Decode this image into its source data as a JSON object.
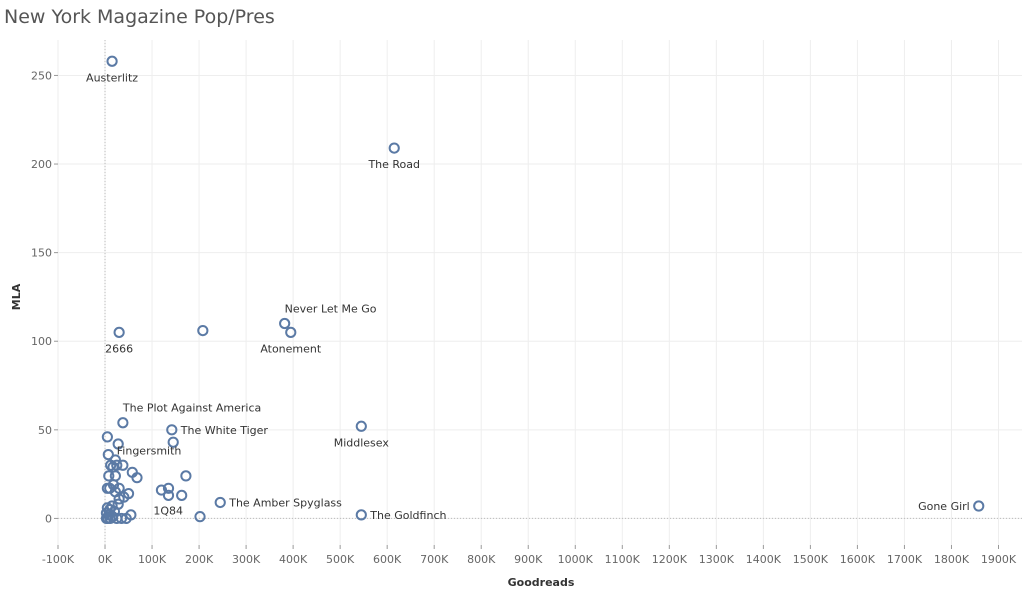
{
  "chart_data": {
    "type": "scatter",
    "title": "New York Magazine Pop/Pres",
    "xlabel": "Goodreads",
    "ylabel": "MLA",
    "xlim": [
      -100000,
      1950000
    ],
    "ylim": [
      -15,
      270
    ],
    "x_ticks": [
      -100000,
      0,
      100000,
      200000,
      300000,
      400000,
      500000,
      600000,
      700000,
      800000,
      900000,
      1000000,
      1100000,
      1200000,
      1300000,
      1400000,
      1500000,
      1600000,
      1700000,
      1800000,
      1900000
    ],
    "x_tick_labels": [
      "-100K",
      "0K",
      "100K",
      "200K",
      "300K",
      "400K",
      "500K",
      "600K",
      "700K",
      "800K",
      "900K",
      "1000K",
      "1100K",
      "1200K",
      "1300K",
      "1400K",
      "1500K",
      "1600K",
      "1700K",
      "1800K",
      "1900K"
    ],
    "y_ticks": [
      0,
      50,
      100,
      150,
      200,
      250
    ],
    "y_tick_labels": [
      "0",
      "50",
      "100",
      "150",
      "200",
      "250"
    ],
    "grid": true,
    "marker_color": "#5b7aa5",
    "points": [
      {
        "x": 15000,
        "y": 258,
        "label": "Austerlitz",
        "label_pos": "below"
      },
      {
        "x": 615000,
        "y": 209,
        "label": "The Road",
        "label_pos": "below"
      },
      {
        "x": 382000,
        "y": 110,
        "label": "Never Let Me Go",
        "label_pos": "above-right"
      },
      {
        "x": 395000,
        "y": 105,
        "label": "Atonement",
        "label_pos": "below"
      },
      {
        "x": 30000,
        "y": 105,
        "label": "2666",
        "label_pos": "below"
      },
      {
        "x": 208000,
        "y": 106,
        "label": "",
        "label_pos": ""
      },
      {
        "x": 38000,
        "y": 54,
        "label": "The Plot Against America",
        "label_pos": "above-right"
      },
      {
        "x": 142000,
        "y": 50,
        "label": "The White Tiger",
        "label_pos": "right"
      },
      {
        "x": 545000,
        "y": 52,
        "label": "Middlesex",
        "label_pos": "below"
      },
      {
        "x": 145000,
        "y": 43,
        "label": "",
        "label_pos": ""
      },
      {
        "x": 5000,
        "y": 46,
        "label": "",
        "label_pos": ""
      },
      {
        "x": 28000,
        "y": 42,
        "label": "",
        "label_pos": ""
      },
      {
        "x": 7000,
        "y": 36,
        "label": "",
        "label_pos": ""
      },
      {
        "x": 22000,
        "y": 33,
        "label": "",
        "label_pos": ""
      },
      {
        "x": 25000,
        "y": 30,
        "label": "Fingersmith",
        "label_pos": "above-right"
      },
      {
        "x": 12000,
        "y": 30,
        "label": "",
        "label_pos": ""
      },
      {
        "x": 38000,
        "y": 30,
        "label": "",
        "label_pos": ""
      },
      {
        "x": 17000,
        "y": 29,
        "label": "",
        "label_pos": ""
      },
      {
        "x": 58000,
        "y": 26,
        "label": "",
        "label_pos": ""
      },
      {
        "x": 172000,
        "y": 24,
        "label": "",
        "label_pos": ""
      },
      {
        "x": 8000,
        "y": 24,
        "label": "",
        "label_pos": ""
      },
      {
        "x": 22000,
        "y": 24,
        "label": "",
        "label_pos": ""
      },
      {
        "x": 68000,
        "y": 23,
        "label": "",
        "label_pos": ""
      },
      {
        "x": 18000,
        "y": 19,
        "label": "",
        "label_pos": ""
      },
      {
        "x": 5000,
        "y": 17,
        "label": "",
        "label_pos": ""
      },
      {
        "x": 10000,
        "y": 17,
        "label": "",
        "label_pos": ""
      },
      {
        "x": 30000,
        "y": 17,
        "label": "",
        "label_pos": ""
      },
      {
        "x": 120000,
        "y": 16,
        "label": "",
        "label_pos": ""
      },
      {
        "x": 135000,
        "y": 17,
        "label": "",
        "label_pos": ""
      },
      {
        "x": 22000,
        "y": 15,
        "label": "",
        "label_pos": ""
      },
      {
        "x": 50000,
        "y": 14,
        "label": "",
        "label_pos": ""
      },
      {
        "x": 135000,
        "y": 13,
        "label": "",
        "label_pos": ""
      },
      {
        "x": 163000,
        "y": 13,
        "label": "",
        "label_pos": ""
      },
      {
        "x": 40000,
        "y": 12,
        "label": "",
        "label_pos": ""
      },
      {
        "x": 30000,
        "y": 11,
        "label": "",
        "label_pos": ""
      },
      {
        "x": 245000,
        "y": 9,
        "label": "The Amber Spyglass",
        "label_pos": "right"
      },
      {
        "x": 1858000,
        "y": 7,
        "label": "Gone Girl",
        "label_pos": "left"
      },
      {
        "x": 28000,
        "y": 8,
        "label": "",
        "label_pos": ""
      },
      {
        "x": 15000,
        "y": 7,
        "label": "",
        "label_pos": ""
      },
      {
        "x": 5000,
        "y": 6,
        "label": "",
        "label_pos": ""
      },
      {
        "x": 10000,
        "y": 5,
        "label": "",
        "label_pos": ""
      },
      {
        "x": 20000,
        "y": 4,
        "label": "",
        "label_pos": ""
      },
      {
        "x": 3000,
        "y": 3,
        "label": "",
        "label_pos": ""
      },
      {
        "x": 8000,
        "y": 2,
        "label": "",
        "label_pos": ""
      },
      {
        "x": 55000,
        "y": 2,
        "label": "",
        "label_pos": ""
      },
      {
        "x": 545000,
        "y": 2,
        "label": "The Goldfinch",
        "label_pos": "right"
      },
      {
        "x": 16000,
        "y": 1,
        "label": "",
        "label_pos": ""
      },
      {
        "x": 202000,
        "y": 1,
        "label": "1Q84",
        "label_pos": "left-up"
      },
      {
        "x": 3000,
        "y": 0,
        "label": "",
        "label_pos": ""
      },
      {
        "x": 6000,
        "y": 0,
        "label": "",
        "label_pos": ""
      },
      {
        "x": 11000,
        "y": 0,
        "label": "",
        "label_pos": ""
      },
      {
        "x": 25000,
        "y": 0,
        "label": "",
        "label_pos": ""
      },
      {
        "x": 35000,
        "y": 0,
        "label": "",
        "label_pos": ""
      },
      {
        "x": 45000,
        "y": 0,
        "label": "",
        "label_pos": ""
      }
    ]
  }
}
